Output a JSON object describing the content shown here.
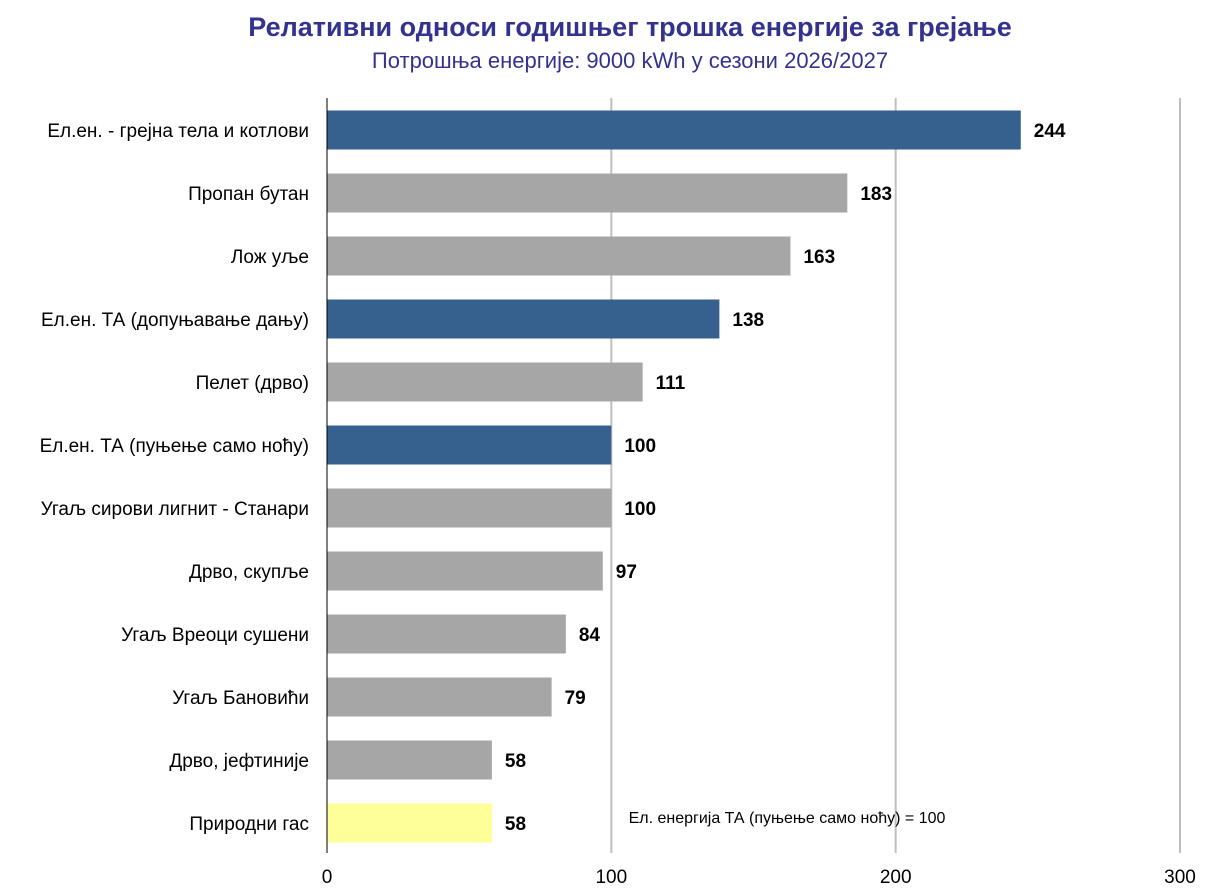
{
  "chart_data": {
    "type": "bar",
    "orientation": "horizontal",
    "title": "Релативни односи годишњег трошка енергије за грејање",
    "subtitle": "Потрошња енергије: 9000 kWh у сезони 2026/2027",
    "categories": [
      "Ел.ен. - грејна тела и котлови",
      "Пропан бутан",
      "Лож уље",
      "Ел.ен. ТА (допуњавање дању)",
      "Пелет (дрво)",
      "Ел.ен. ТА (пуњење само ноћу)",
      "Угаљ сирови лигнит - Станари",
      "Дрво, скупље",
      "Угаљ Вреоци сушени",
      "Угаљ Бановићи",
      "Дрво, јефтиније",
      "Природни гас"
    ],
    "values": [
      244,
      183,
      163,
      138,
      111,
      100,
      100,
      97,
      84,
      79,
      58,
      58
    ],
    "bar_colors": [
      "#36618f",
      "#a6a6a6",
      "#a6a6a6",
      "#36618f",
      "#a6a6a6",
      "#36618f",
      "#a6a6a6",
      "#a6a6a6",
      "#a6a6a6",
      "#a6a6a6",
      "#a6a6a6",
      "#ffff99"
    ],
    "xlim": [
      0,
      300
    ],
    "xticks": [
      "0",
      "100",
      "200",
      "300"
    ],
    "grid": true,
    "annotation": "Ел. енергија ТА (пуњење само ноћу) = 100"
  }
}
